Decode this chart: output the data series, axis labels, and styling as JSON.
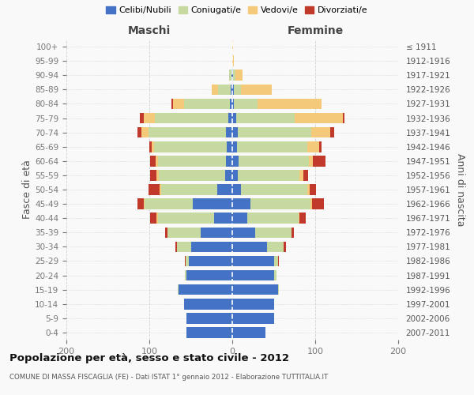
{
  "age_groups": [
    "0-4",
    "5-9",
    "10-14",
    "15-19",
    "20-24",
    "25-29",
    "30-34",
    "35-39",
    "40-44",
    "45-49",
    "50-54",
    "55-59",
    "60-64",
    "65-69",
    "70-74",
    "75-79",
    "80-84",
    "85-89",
    "90-94",
    "95-99",
    "100+"
  ],
  "birth_years": [
    "2007-2011",
    "2002-2006",
    "1997-2001",
    "1992-1996",
    "1987-1991",
    "1982-1986",
    "1977-1981",
    "1972-1976",
    "1967-1971",
    "1962-1966",
    "1957-1961",
    "1952-1956",
    "1947-1951",
    "1942-1946",
    "1937-1941",
    "1932-1936",
    "1927-1931",
    "1922-1926",
    "1917-1921",
    "1912-1916",
    "≤ 1911"
  ],
  "male": {
    "celibi": [
      55,
      55,
      58,
      65,
      55,
      52,
      50,
      38,
      22,
      48,
      18,
      9,
      8,
      7,
      8,
      5,
      3,
      2,
      1,
      0,
      0
    ],
    "coniugati": [
      0,
      0,
      0,
      1,
      2,
      4,
      17,
      40,
      68,
      58,
      68,
      80,
      82,
      87,
      93,
      88,
      55,
      15,
      3,
      0,
      0
    ],
    "vedovi": [
      0,
      0,
      0,
      0,
      0,
      0,
      0,
      0,
      1,
      1,
      2,
      2,
      2,
      3,
      9,
      14,
      13,
      8,
      0,
      0,
      0
    ],
    "divorziati": [
      0,
      0,
      0,
      0,
      0,
      1,
      2,
      3,
      8,
      7,
      13,
      8,
      7,
      3,
      4,
      4,
      2,
      0,
      0,
      0,
      0
    ]
  },
  "female": {
    "nubili": [
      40,
      50,
      50,
      55,
      50,
      50,
      42,
      28,
      18,
      22,
      10,
      7,
      8,
      6,
      7,
      5,
      2,
      2,
      1,
      0,
      0
    ],
    "coniugate": [
      0,
      0,
      0,
      1,
      3,
      5,
      20,
      43,
      62,
      72,
      80,
      74,
      84,
      84,
      88,
      70,
      28,
      8,
      3,
      0,
      0
    ],
    "vedove": [
      0,
      0,
      0,
      0,
      0,
      0,
      0,
      0,
      1,
      2,
      3,
      5,
      5,
      15,
      23,
      58,
      78,
      38,
      8,
      2,
      1
    ],
    "divorziate": [
      0,
      0,
      0,
      0,
      0,
      1,
      3,
      3,
      8,
      14,
      8,
      5,
      15,
      3,
      5,
      2,
      0,
      0,
      0,
      0,
      0
    ]
  },
  "colors": {
    "celibi": "#4472c4",
    "coniugati": "#c5d9a0",
    "vedovi": "#f5c97a",
    "divorziati": "#c0392b"
  },
  "xlim": 200,
  "title": "Popolazione per età, sesso e stato civile - 2012",
  "subtitle": "COMUNE DI MASSA FISCAGLIA (FE) - Dati ISTAT 1° gennaio 2012 - Elaborazione TUTTITALIA.IT",
  "ylabel_left": "Fasce di età",
  "ylabel_right": "Anni di nascita",
  "xlabel_left": "Maschi",
  "xlabel_right": "Femmine",
  "bg_color": "#f9f9f9",
  "grid_color": "#cccccc",
  "bar_height": 0.75
}
